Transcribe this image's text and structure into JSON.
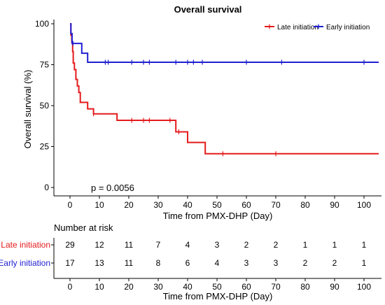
{
  "chart_data": {
    "type": "line",
    "subtype": "kaplan-meier",
    "title": "Overall survival",
    "xlabel": "Time from PMX-DHP (Day)",
    "ylabel": "Overall survival (%)",
    "xlim": [
      0,
      105
    ],
    "ylim": [
      0,
      100
    ],
    "x_ticks": [
      0,
      10,
      20,
      30,
      40,
      50,
      60,
      70,
      80,
      90,
      100
    ],
    "y_ticks": [
      0,
      25,
      50,
      75,
      100
    ],
    "grid": false,
    "legend_position": "top-right",
    "annotation": "p = 0.0056",
    "series": [
      {
        "name": "Late initiation",
        "color": "#e41a1c",
        "steps": [
          [
            0,
            100
          ],
          [
            0.3,
            93
          ],
          [
            0.6,
            89
          ],
          [
            0.9,
            83
          ],
          [
            1.1,
            76
          ],
          [
            1.5,
            72
          ],
          [
            2.0,
            66
          ],
          [
            2.5,
            62
          ],
          [
            3.0,
            58
          ],
          [
            3.5,
            52
          ],
          [
            6.0,
            48
          ],
          [
            8.0,
            45
          ],
          [
            16.0,
            41
          ],
          [
            36.0,
            34
          ],
          [
            40.0,
            27.5
          ],
          [
            46.0,
            20.6
          ],
          [
            105,
            20.6
          ]
        ],
        "censor_x": [
          8,
          21,
          25,
          27,
          34,
          37,
          52,
          70
        ]
      },
      {
        "name": "Early initiation",
        "color": "#1f1fd2",
        "steps": [
          [
            0,
            100
          ],
          [
            0.3,
            94
          ],
          [
            0.7,
            88
          ],
          [
            4.0,
            82
          ],
          [
            6.0,
            76.5
          ],
          [
            105,
            76.5
          ]
        ],
        "censor_x": [
          1,
          12,
          13,
          21,
          25,
          27,
          36,
          40,
          42,
          45,
          60,
          72,
          100
        ]
      }
    ],
    "risk_table": {
      "title": "Number at risk",
      "x": [
        0,
        10,
        20,
        30,
        40,
        50,
        60,
        70,
        80,
        90,
        100
      ],
      "rows": [
        {
          "label": "Late initiation",
          "color": "#e41a1c",
          "values": [
            29,
            12,
            11,
            7,
            4,
            3,
            2,
            2,
            1,
            1,
            1
          ]
        },
        {
          "label": "Early initiation",
          "color": "#1f1fd2",
          "values": [
            17,
            13,
            11,
            8,
            6,
            4,
            3,
            3,
            2,
            2,
            1
          ]
        }
      ]
    }
  }
}
